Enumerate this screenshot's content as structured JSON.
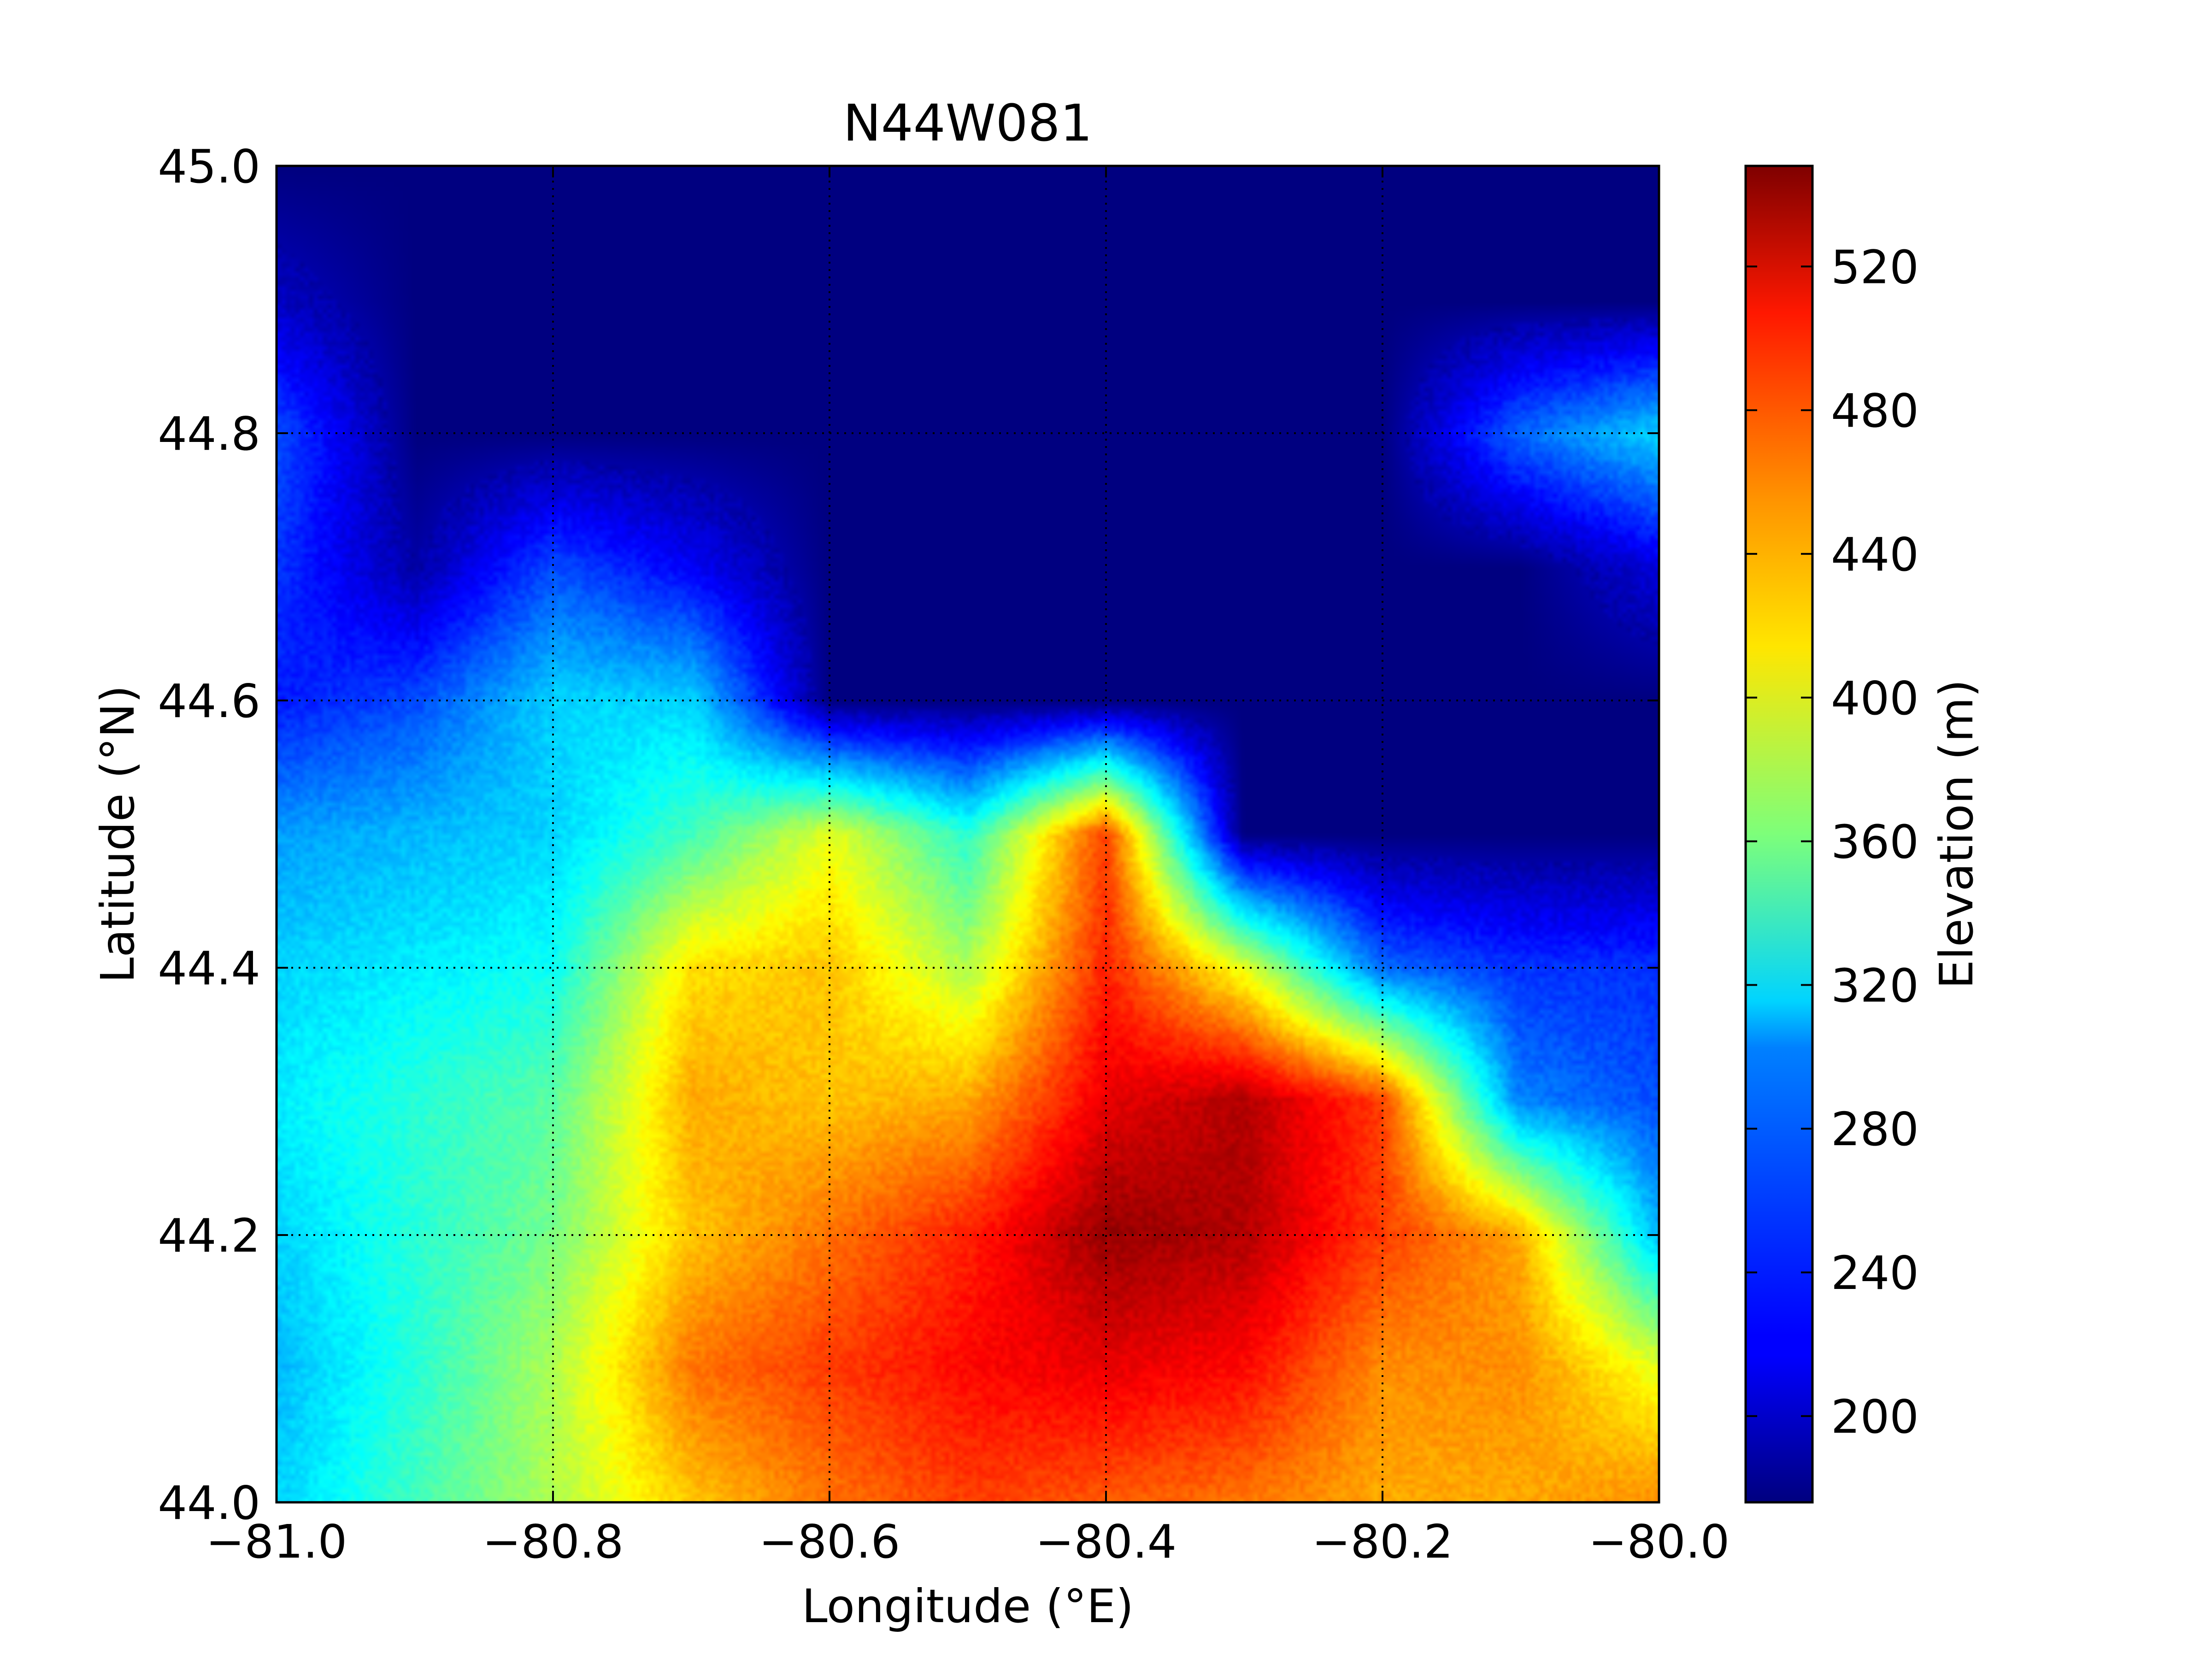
{
  "chart_data": {
    "type": "heatmap",
    "title": "N44W081",
    "xlabel": "Longitude (°E)",
    "ylabel": "Latitude (°N)",
    "xlim": [
      -81.0,
      -80.0
    ],
    "ylim": [
      44.0,
      45.0
    ],
    "x_ticks": [
      -81.0,
      -80.8,
      -80.6,
      -80.4,
      -80.2,
      -80.0
    ],
    "x_tick_labels": [
      "−81.0",
      "−80.8",
      "−80.6",
      "−80.4",
      "−80.2",
      "−80.0"
    ],
    "y_ticks": [
      44.0,
      44.2,
      44.4,
      44.6,
      44.8,
      45.0
    ],
    "y_tick_labels": [
      "44.0",
      "44.2",
      "44.4",
      "44.6",
      "44.8",
      "45.0"
    ],
    "grid": true,
    "grid_style": "dotted",
    "colormap": "jet",
    "colorbar": {
      "label": "Elevation (m)",
      "range": [
        176,
        548
      ],
      "ticks": [
        200,
        240,
        280,
        320,
        360,
        400,
        440,
        480,
        520
      ],
      "tick_labels": [
        "200",
        "240",
        "280",
        "320",
        "360",
        "400",
        "440",
        "480",
        "520"
      ]
    },
    "elevation_grid": {
      "lon": [
        -81.0,
        -80.9,
        -80.8,
        -80.7,
        -80.6,
        -80.5,
        -80.4,
        -80.3,
        -80.2,
        -80.1,
        -80.0
      ],
      "lat": [
        45.0,
        44.9,
        44.8,
        44.7,
        44.6,
        44.5,
        44.4,
        44.3,
        44.2,
        44.1,
        44.0
      ],
      "values_m": [
        [
          176,
          176,
          176,
          176,
          176,
          176,
          176,
          176,
          176,
          176,
          176
        ],
        [
          200,
          176,
          176,
          176,
          176,
          176,
          176,
          176,
          176,
          176,
          176
        ],
        [
          250,
          176,
          176,
          176,
          176,
          176,
          176,
          176,
          176,
          260,
          300
        ],
        [
          240,
          190,
          250,
          220,
          176,
          176,
          176,
          176,
          176,
          176,
          210
        ],
        [
          230,
          250,
          300,
          300,
          176,
          176,
          176,
          176,
          176,
          176,
          176
        ],
        [
          280,
          290,
          300,
          340,
          400,
          330,
          480,
          176,
          176,
          176,
          176
        ],
        [
          300,
          310,
          320,
          420,
          430,
          380,
          490,
          400,
          260,
          240,
          240
        ],
        [
          310,
          330,
          350,
          440,
          430,
          440,
          510,
          530,
          480,
          270,
          250
        ],
        [
          300,
          330,
          360,
          430,
          460,
          490,
          540,
          530,
          480,
          440,
          290
        ],
        [
          290,
          330,
          380,
          460,
          480,
          500,
          510,
          500,
          450,
          450,
          400
        ],
        [
          300,
          340,
          380,
          430,
          460,
          480,
          470,
          460,
          440,
          440,
          450
        ]
      ]
    }
  }
}
